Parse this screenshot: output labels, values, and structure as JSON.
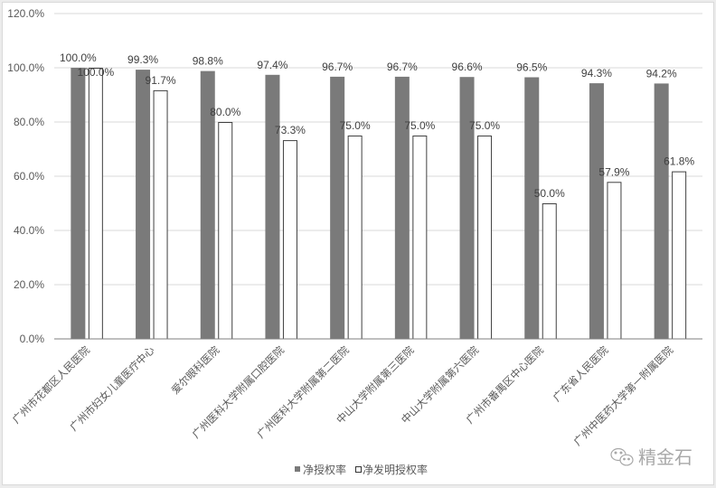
{
  "chart_data": {
    "type": "bar",
    "title": "",
    "xlabel": "",
    "ylabel": "",
    "ylim": [
      0,
      120
    ],
    "yticks": [
      "0.0%",
      "20.0%",
      "40.0%",
      "60.0%",
      "80.0%",
      "100.0%",
      "120.0%"
    ],
    "grid": true,
    "legend_position": "bottom",
    "categories": [
      "广州市花都区人民医院",
      "广州市妇女儿童医疗中心",
      "爱尔眼科医院",
      "广州医科大学附属口腔医院",
      "广州医科大学附属第二医院",
      "中山大学附属第三医院",
      "中山大学附属第六医院",
      "广州市番禺区中心医院",
      "广东省人民医院",
      "广州中医药大学第一附属医院"
    ],
    "series": [
      {
        "name": "净授权率",
        "color": "#7a7a7a",
        "style": "filled",
        "values": [
          100.0,
          99.3,
          98.8,
          97.4,
          96.7,
          96.7,
          96.6,
          96.5,
          94.3,
          94.2
        ],
        "labels": [
          "100.0%",
          "99.3%",
          "98.8%",
          "97.4%",
          "96.7%",
          "96.7%",
          "96.6%",
          "96.5%",
          "94.3%",
          "94.2%"
        ]
      },
      {
        "name": "净发明授权率",
        "color": "#ffffff",
        "stroke": "#404040",
        "style": "outlined",
        "values": [
          100.0,
          91.7,
          80.0,
          73.3,
          75.0,
          75.0,
          75.0,
          50.0,
          57.9,
          61.8
        ],
        "labels": [
          "100.0%",
          "91.7%",
          "80.0%",
          "73.3%",
          "75.0%",
          "75.0%",
          "75.0%",
          "50.0%",
          "57.9%",
          "61.8%"
        ]
      }
    ]
  },
  "watermark": {
    "text": "精金石",
    "icon": "wechat-icon"
  }
}
